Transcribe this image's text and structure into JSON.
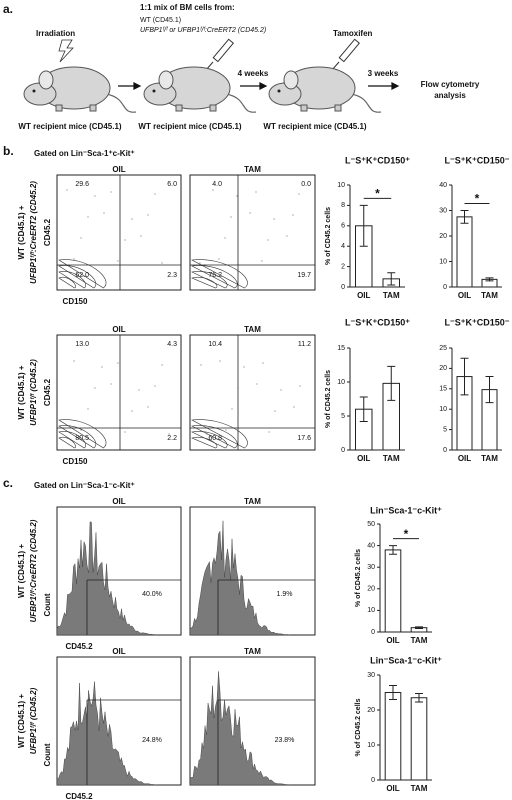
{
  "panel_a": {
    "label": "a.",
    "irradiation": "Irradiation",
    "mix_title": "1:1 mix of BM cells from:",
    "mix_line1": "WT (CD45.1)",
    "mix_line2": "UFBP1ᶠ/ᶠ or UFBP1ᶠ/ᶠ:CreERT2 (CD45.2)",
    "tamoxifen": "Tamoxifen",
    "interval1": "4 weeks",
    "interval2": "3 weeks",
    "readout": [
      "Flow cytometry",
      "analysis"
    ],
    "mouse_labels": [
      "WT recipient mice (CD45.1)",
      "WT recipient mice (CD45.1)",
      "WT recipient mice (CD45.1)"
    ]
  },
  "panel_b": {
    "label": "b.",
    "gate": "Gated on Lin⁻Sca-1⁺c-Kit⁺",
    "rows": [
      {
        "genotype": [
          "WT (CD45.1) +",
          "UFBP1ᶠ/ᶠ:CreERT2 (CD45.2)"
        ],
        "y_axis": "CD45.2",
        "x_axis": "CD150",
        "plots": [
          {
            "title": "OIL",
            "quadrants": [
              "29.6",
              "6.0",
              "62.0",
              "2.3"
            ]
          },
          {
            "title": "TAM",
            "quadrants": [
              "4.0",
              "0.0",
              "76.2",
              "19.7"
            ]
          }
        ]
      },
      {
        "genotype": [
          "WT (CD45.1) +",
          "UFBP1ᶠ/ᶠ (CD45.2)"
        ],
        "y_axis": "CD45.2",
        "x_axis": "CD150",
        "plots": [
          {
            "title": "OIL",
            "quadrants": [
              "13.0",
              "4.3",
              "80.5",
              "2.2"
            ]
          },
          {
            "title": "TAM",
            "quadrants": [
              "10.4",
              "11.2",
              "60.8",
              "17.6"
            ]
          }
        ]
      }
    ]
  },
  "panel_c": {
    "label": "c.",
    "gate": "Gated on Lin⁻Sca-1⁻c-Kit⁺",
    "rows": [
      {
        "genotype": [
          "WT (CD45.1) +",
          "UFBP1ᶠ/ᶠ:CreERT2 (CD45.2)"
        ],
        "y_axis": "Count",
        "x_axis": "CD45.2",
        "plots": [
          {
            "title": "OIL",
            "gate_value": "40.0%"
          },
          {
            "title": "TAM",
            "gate_value": "1.9%"
          }
        ]
      },
      {
        "genotype": [
          "WT (CD45.1) +",
          "UFBP1ᶠ/ᶠ (CD45.2)"
        ],
        "y_axis": "Count",
        "x_axis": "CD45.2",
        "plots": [
          {
            "title": "OIL",
            "gate_value": "24.8%"
          },
          {
            "title": "TAM",
            "gate_value": "23.8%"
          }
        ]
      }
    ]
  },
  "chart_data": [
    {
      "type": "bar",
      "title": "L⁻S⁺K⁺CD150⁺",
      "ylabel": "% of CD45.2 cells",
      "categories": [
        "OIL",
        "TAM"
      ],
      "values": [
        6,
        0.8
      ],
      "errors": [
        2,
        0.6
      ],
      "color": "#ffffff",
      "ylim": [
        0,
        10
      ],
      "yticks": [
        0,
        2,
        4,
        6,
        8,
        10
      ],
      "annotation": "*"
    },
    {
      "type": "bar",
      "title": "L⁻S⁺K⁺CD150⁻",
      "categories": [
        "OIL",
        "TAM"
      ],
      "values": [
        27.5,
        3
      ],
      "errors": [
        2.5,
        0.6
      ],
      "color": "#ffffff",
      "ylim": [
        0,
        40
      ],
      "yticks": [
        0,
        10,
        20,
        30,
        40
      ],
      "annotation": "*"
    },
    {
      "type": "bar",
      "title": "L⁻S⁺K⁺CD150⁺",
      "ylabel": "% of CD45.2 cells",
      "categories": [
        "OIL",
        "TAM"
      ],
      "values": [
        6,
        9.8
      ],
      "errors": [
        1.8,
        2.5
      ],
      "color": "#ffffff",
      "ylim": [
        0,
        15
      ],
      "yticks": [
        0,
        5,
        10,
        15
      ]
    },
    {
      "type": "bar",
      "title": "L⁻S⁺K⁺CD150⁻",
      "categories": [
        "OIL",
        "TAM"
      ],
      "values": [
        18,
        14.8
      ],
      "errors": [
        4.5,
        3.2
      ],
      "color": "#ffffff",
      "ylim": [
        0,
        25
      ],
      "yticks": [
        0,
        5,
        10,
        15,
        20,
        25
      ]
    },
    {
      "type": "bar",
      "title": "Lin⁻Sca-1⁻c-Kit⁺",
      "ylabel": "% of CD45.2 cells",
      "categories": [
        "OIL",
        "TAM"
      ],
      "values": [
        38,
        2
      ],
      "errors": [
        2,
        0.4
      ],
      "color": "#ffffff",
      "ylim": [
        0,
        50
      ],
      "yticks": [
        0,
        10,
        20,
        30,
        40,
        50
      ],
      "annotation": "*"
    },
    {
      "type": "bar",
      "title": "Lin⁻Sca-1⁻c-Kit⁺",
      "ylabel": "% of CD45.2 cells",
      "categories": [
        "OIL",
        "TAM"
      ],
      "values": [
        25,
        23.5
      ],
      "errors": [
        2,
        1.2
      ],
      "color": "#ffffff",
      "ylim": [
        0,
        30
      ],
      "yticks": [
        0,
        10,
        20,
        30
      ]
    }
  ]
}
